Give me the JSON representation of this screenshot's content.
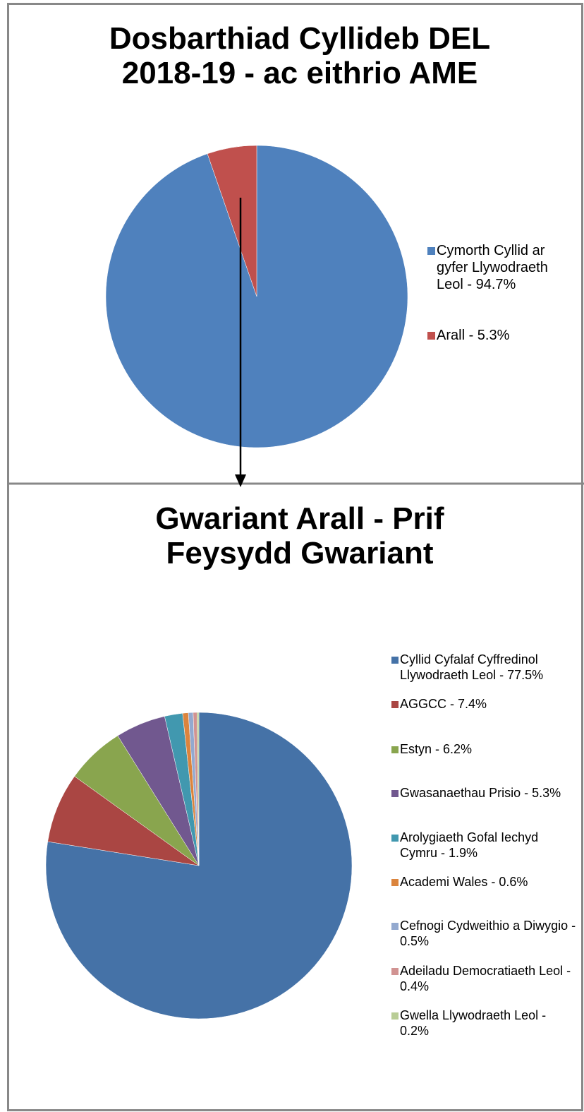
{
  "chart_data": [
    {
      "type": "pie",
      "title": "Dosbarthiad Cyllideb DEL 2018-19 - ac eithrio AME",
      "categories": [
        "Cymorth Cyllid ar gyfer Llywodraeth Leol - 94.7%",
        "Arall - 5.3%"
      ],
      "values": [
        94.7,
        5.3
      ],
      "colors": [
        "#4f81bd",
        "#c0504d"
      ],
      "legend": "right"
    },
    {
      "type": "pie",
      "title": "Gwariant Arall - Prif Feysydd Gwariant",
      "categories": [
        "Cyllid Cyfalaf Cyffredinol Llywodraeth Leol - 77.5%",
        "AGGCC - 7.4%",
        "Estyn - 6.2%",
        "Gwasanaethau Prisio - 5.3%",
        "Arolygiaeth Gofal Iechyd Cymru - 1.9%",
        "Academi Wales - 0.6%",
        "Cefnogi Cydweithio a Diwygio - 0.5%",
        "Adeiladu Democratiaeth Leol - 0.4%",
        "Gwella Llywodraeth Leol - 0.2%"
      ],
      "values": [
        77.5,
        7.4,
        6.2,
        5.3,
        1.9,
        0.6,
        0.5,
        0.4,
        0.2
      ],
      "colors": [
        "#4572a7",
        "#aa4643",
        "#89a54e",
        "#71588f",
        "#4198af",
        "#db843d",
        "#93a9cf",
        "#d19392",
        "#b9cd96"
      ],
      "legend": "right"
    }
  ]
}
